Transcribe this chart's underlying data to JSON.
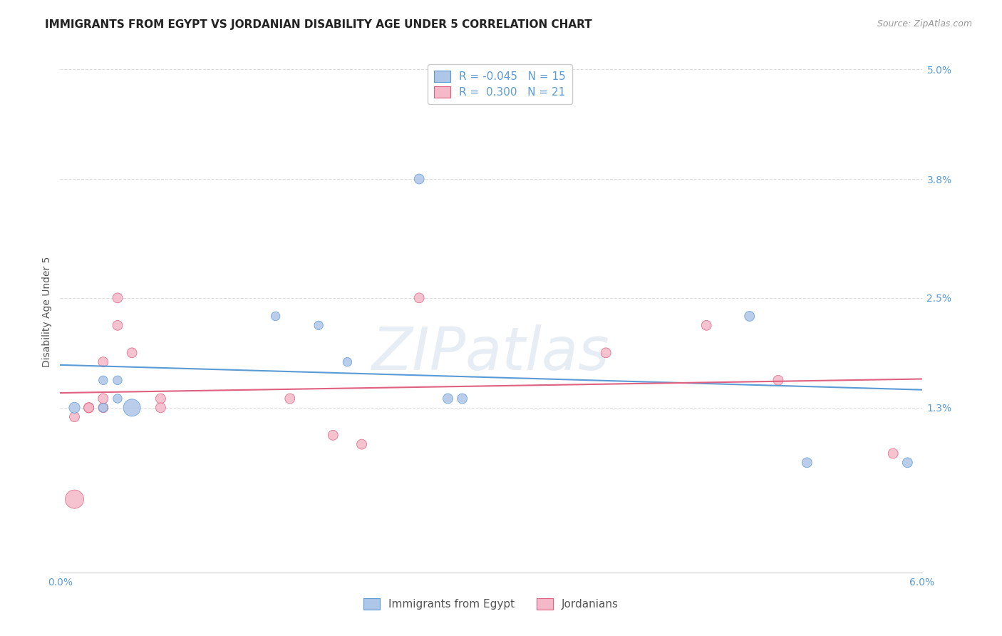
{
  "title": "IMMIGRANTS FROM EGYPT VS JORDANIAN DISABILITY AGE UNDER 5 CORRELATION CHART",
  "source": "Source: ZipAtlas.com",
  "ylabel": "Disability Age Under 5",
  "xlabel_legend_left": "Immigrants from Egypt",
  "xlabel_legend_right": "Jordanians",
  "watermark": "ZIPatlas",
  "xmin": 0.0,
  "xmax": 0.06,
  "ymin": -0.005,
  "ymax": 0.052,
  "yticks": [
    0.013,
    0.025,
    0.038,
    0.05
  ],
  "ytick_labels": [
    "1.3%",
    "2.5%",
    "3.8%",
    "5.0%"
  ],
  "xticks": [
    0.0,
    0.01,
    0.02,
    0.03,
    0.04,
    0.05,
    0.06
  ],
  "xtick_labels": [
    "0.0%",
    "",
    "",
    "",
    "",
    "",
    "6.0%"
  ],
  "egypt_R": "-0.045",
  "egypt_N": "15",
  "jordan_R": "0.300",
  "jordan_N": "21",
  "egypt_color": "#aec6e8",
  "jordan_color": "#f4b8c8",
  "egypt_line_color": "#5b9bd5",
  "jordan_line_color": "#e06080",
  "egypt_points": [
    [
      0.001,
      0.013
    ],
    [
      0.003,
      0.016
    ],
    [
      0.003,
      0.013
    ],
    [
      0.004,
      0.016
    ],
    [
      0.004,
      0.014
    ],
    [
      0.005,
      0.013
    ],
    [
      0.015,
      0.023
    ],
    [
      0.018,
      0.022
    ],
    [
      0.02,
      0.018
    ],
    [
      0.025,
      0.038
    ],
    [
      0.027,
      0.014
    ],
    [
      0.028,
      0.014
    ],
    [
      0.048,
      0.023
    ],
    [
      0.052,
      0.007
    ],
    [
      0.059,
      0.007
    ]
  ],
  "jordan_points": [
    [
      0.001,
      0.003
    ],
    [
      0.001,
      0.012
    ],
    [
      0.002,
      0.013
    ],
    [
      0.002,
      0.013
    ],
    [
      0.002,
      0.013
    ],
    [
      0.003,
      0.013
    ],
    [
      0.003,
      0.014
    ],
    [
      0.003,
      0.018
    ],
    [
      0.004,
      0.022
    ],
    [
      0.004,
      0.025
    ],
    [
      0.005,
      0.019
    ],
    [
      0.007,
      0.014
    ],
    [
      0.007,
      0.013
    ],
    [
      0.016,
      0.014
    ],
    [
      0.019,
      0.01
    ],
    [
      0.021,
      0.009
    ],
    [
      0.025,
      0.025
    ],
    [
      0.038,
      0.019
    ],
    [
      0.045,
      0.022
    ],
    [
      0.05,
      0.016
    ],
    [
      0.058,
      0.008
    ]
  ],
  "egypt_sizes": [
    120,
    80,
    80,
    80,
    80,
    300,
    80,
    80,
    80,
    100,
    100,
    100,
    100,
    100,
    100
  ],
  "jordan_sizes": [
    350,
    100,
    100,
    100,
    100,
    100,
    100,
    100,
    100,
    100,
    100,
    100,
    100,
    100,
    100,
    100,
    100,
    100,
    100,
    100,
    100
  ],
  "background_color": "#ffffff",
  "grid_color": "#dddddd",
  "axis_color": "#5b9bd5",
  "title_fontsize": 11,
  "axis_label_fontsize": 10,
  "tick_fontsize": 10
}
